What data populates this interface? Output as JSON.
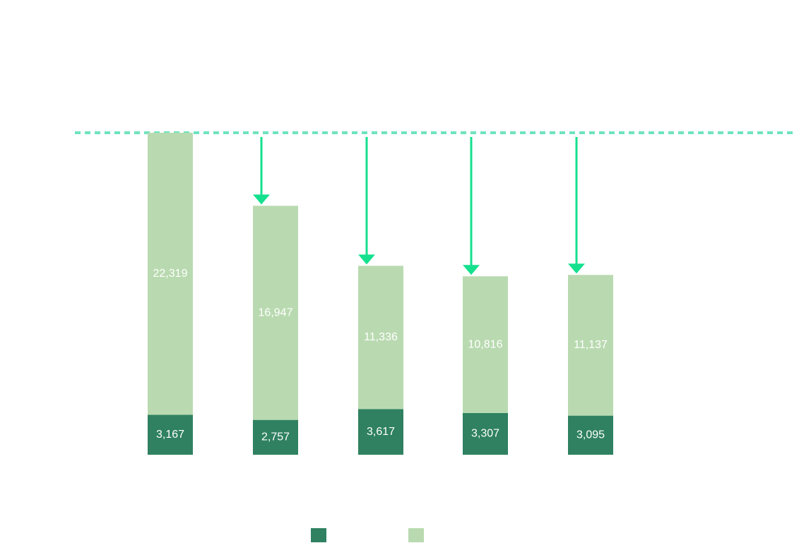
{
  "chart_data": {
    "type": "bar",
    "stacked": true,
    "categories": [
      "",
      "",
      "",
      "",
      ""
    ],
    "series": [
      {
        "values": [
          3167,
          2757,
          3617,
          3307,
          3095
        ]
      },
      {
        "values": [
          22319,
          16947,
          11336,
          10816,
          11137
        ]
      }
    ],
    "title": "",
    "xlabel": "",
    "ylabel": "",
    "ylim": [
      0,
      25486
    ],
    "grid": false,
    "legend": "bottom-center",
    "reference_line": {
      "value": 25486,
      "style": "dashed"
    },
    "arrows": [
      {
        "category_index": 1,
        "from": 25486,
        "to": 19704
      },
      {
        "category_index": 2,
        "from": 25486,
        "to": 14953
      },
      {
        "category_index": 3,
        "from": 25486,
        "to": 14123
      },
      {
        "category_index": 4,
        "from": 25486,
        "to": 14232
      }
    ],
    "colors": {
      "series_0": "#2f8161",
      "series_1": "#b9dab0",
      "reference_line": "#6ee3bf",
      "arrow": "#14e08e"
    }
  }
}
